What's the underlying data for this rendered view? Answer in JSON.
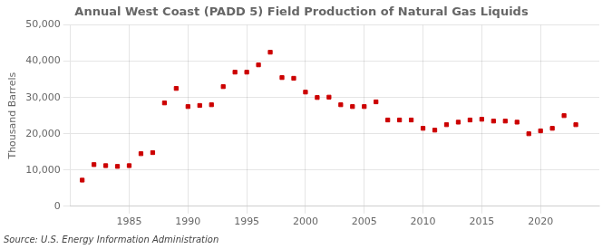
{
  "chart_data": {
    "type": "scatter",
    "title": "Annual West Coast (PADD 5) Field Production of Natural Gas Liquids",
    "ylabel": "Thousand Barrels",
    "source": "Source: U.S. Energy Information Administration",
    "x": [
      1981,
      1982,
      1983,
      1984,
      1985,
      1986,
      1987,
      1988,
      1989,
      1990,
      1991,
      1992,
      1993,
      1994,
      1995,
      1996,
      1997,
      1998,
      1999,
      2000,
      2001,
      2002,
      2003,
      2004,
      2005,
      2006,
      2007,
      2008,
      2009,
      2010,
      2011,
      2012,
      2013,
      2014,
      2015,
      2016,
      2017,
      2018,
      2019,
      2020,
      2021,
      2022,
      2023
    ],
    "values": [
      7200,
      11500,
      11200,
      11000,
      11200,
      14500,
      14800,
      28500,
      32500,
      27500,
      27800,
      28000,
      33000,
      37000,
      37000,
      39000,
      42500,
      35500,
      35300,
      31500,
      30000,
      30100,
      28000,
      27500,
      27500,
      28800,
      23800,
      23800,
      23800,
      21500,
      21000,
      22500,
      23200,
      23800,
      24000,
      23500,
      23500,
      23200,
      20000,
      20800,
      21500,
      25000,
      22500
    ],
    "color": "#cc0000",
    "marker": "square",
    "xlim": [
      1980,
      2025
    ],
    "xticks": [
      1985,
      1990,
      1995,
      2000,
      2005,
      2010,
      2015,
      2020
    ],
    "ylim": [
      0,
      50000
    ],
    "yticks": [
      0,
      {
        "value": 10000,
        "label": "10,000"
      },
      {
        "value": 20000,
        "label": "20,000"
      },
      {
        "value": 30000,
        "label": "30,000"
      },
      {
        "value": 40000,
        "label": "40,000"
      },
      {
        "value": 50000,
        "label": "50,000"
      }
    ],
    "grid": true
  }
}
